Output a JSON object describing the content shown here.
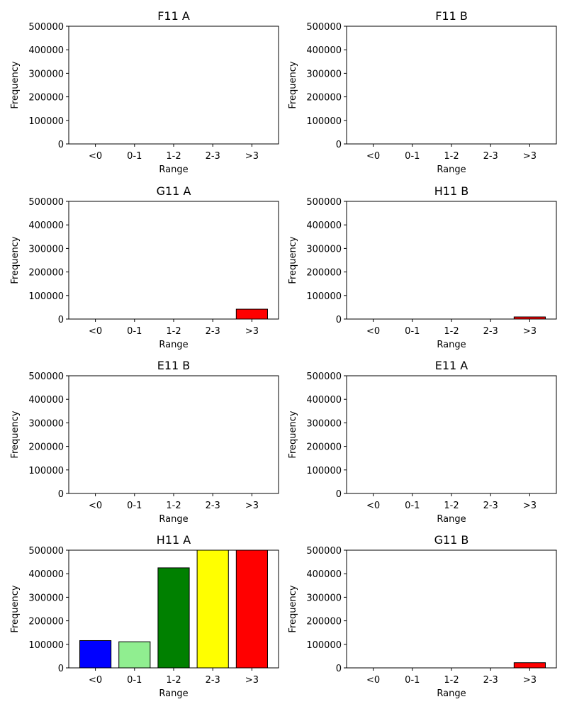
{
  "chart_data": [
    {
      "type": "bar",
      "title": "F11 A",
      "xlabel": "Range",
      "ylabel": "Frequency",
      "categories": [
        "<0",
        "0-1",
        "1-2",
        "2-3",
        ">3"
      ],
      "values": [
        0,
        0,
        0,
        0,
        0
      ],
      "colors": [
        "#0000ff",
        "#90ee90",
        "#008000",
        "#ffff00",
        "#ff0000"
      ],
      "ylim": [
        0,
        500000
      ],
      "yticks": [
        "0",
        "100000",
        "200000",
        "300000",
        "400000",
        "500000"
      ]
    },
    {
      "type": "bar",
      "title": "F11 B",
      "xlabel": "Range",
      "ylabel": "Frequency",
      "categories": [
        "<0",
        "0-1",
        "1-2",
        "2-3",
        ">3"
      ],
      "values": [
        0,
        0,
        0,
        0,
        0
      ],
      "colors": [
        "#0000ff",
        "#90ee90",
        "#008000",
        "#ffff00",
        "#ff0000"
      ],
      "ylim": [
        0,
        500000
      ],
      "yticks": [
        "0",
        "100000",
        "200000",
        "300000",
        "400000",
        "500000"
      ]
    },
    {
      "type": "bar",
      "title": "G11 A",
      "xlabel": "Range",
      "ylabel": "Frequency",
      "categories": [
        "<0",
        "0-1",
        "1-2",
        "2-3",
        ">3"
      ],
      "values": [
        0,
        0,
        0,
        0,
        42000
      ],
      "colors": [
        "#0000ff",
        "#90ee90",
        "#008000",
        "#ffff00",
        "#ff0000"
      ],
      "ylim": [
        0,
        500000
      ],
      "yticks": [
        "0",
        "100000",
        "200000",
        "300000",
        "400000",
        "500000"
      ]
    },
    {
      "type": "bar",
      "title": "H11 B",
      "xlabel": "Range",
      "ylabel": "Frequency",
      "categories": [
        "<0",
        "0-1",
        "1-2",
        "2-3",
        ">3"
      ],
      "values": [
        0,
        0,
        0,
        0,
        9000
      ],
      "colors": [
        "#0000ff",
        "#90ee90",
        "#008000",
        "#ffff00",
        "#ff0000"
      ],
      "ylim": [
        0,
        500000
      ],
      "yticks": [
        "0",
        "100000",
        "200000",
        "300000",
        "400000",
        "500000"
      ]
    },
    {
      "type": "bar",
      "title": "E11 B",
      "xlabel": "Range",
      "ylabel": "Frequency",
      "categories": [
        "<0",
        "0-1",
        "1-2",
        "2-3",
        ">3"
      ],
      "values": [
        0,
        0,
        0,
        0,
        0
      ],
      "colors": [
        "#0000ff",
        "#90ee90",
        "#008000",
        "#ffff00",
        "#ff0000"
      ],
      "ylim": [
        0,
        500000
      ],
      "yticks": [
        "0",
        "100000",
        "200000",
        "300000",
        "400000",
        "500000"
      ]
    },
    {
      "type": "bar",
      "title": "E11 A",
      "xlabel": "Range",
      "ylabel": "Frequency",
      "categories": [
        "<0",
        "0-1",
        "1-2",
        "2-3",
        ">3"
      ],
      "values": [
        0,
        0,
        0,
        0,
        0
      ],
      "colors": [
        "#0000ff",
        "#90ee90",
        "#008000",
        "#ffff00",
        "#ff0000"
      ],
      "ylim": [
        0,
        500000
      ],
      "yticks": [
        "0",
        "100000",
        "200000",
        "300000",
        "400000",
        "500000"
      ]
    },
    {
      "type": "bar",
      "title": "H11 A",
      "xlabel": "Range",
      "ylabel": "Frequency",
      "categories": [
        "<0",
        "0-1",
        "1-2",
        "2-3",
        ">3"
      ],
      "values": [
        116000,
        111000,
        425000,
        500000,
        500000
      ],
      "colors": [
        "#0000ff",
        "#90ee90",
        "#008000",
        "#ffff00",
        "#ff0000"
      ],
      "ylim": [
        0,
        500000
      ],
      "yticks": [
        "0",
        "100000",
        "200000",
        "300000",
        "400000",
        "500000"
      ]
    },
    {
      "type": "bar",
      "title": "G11 B",
      "xlabel": "Range",
      "ylabel": "Frequency",
      "categories": [
        "<0",
        "0-1",
        "1-2",
        "2-3",
        ">3"
      ],
      "values": [
        0,
        0,
        0,
        0,
        22000
      ],
      "colors": [
        "#0000ff",
        "#90ee90",
        "#008000",
        "#ffff00",
        "#ff0000"
      ],
      "ylim": [
        0,
        500000
      ],
      "yticks": [
        "0",
        "100000",
        "200000",
        "300000",
        "400000",
        "500000"
      ]
    }
  ]
}
